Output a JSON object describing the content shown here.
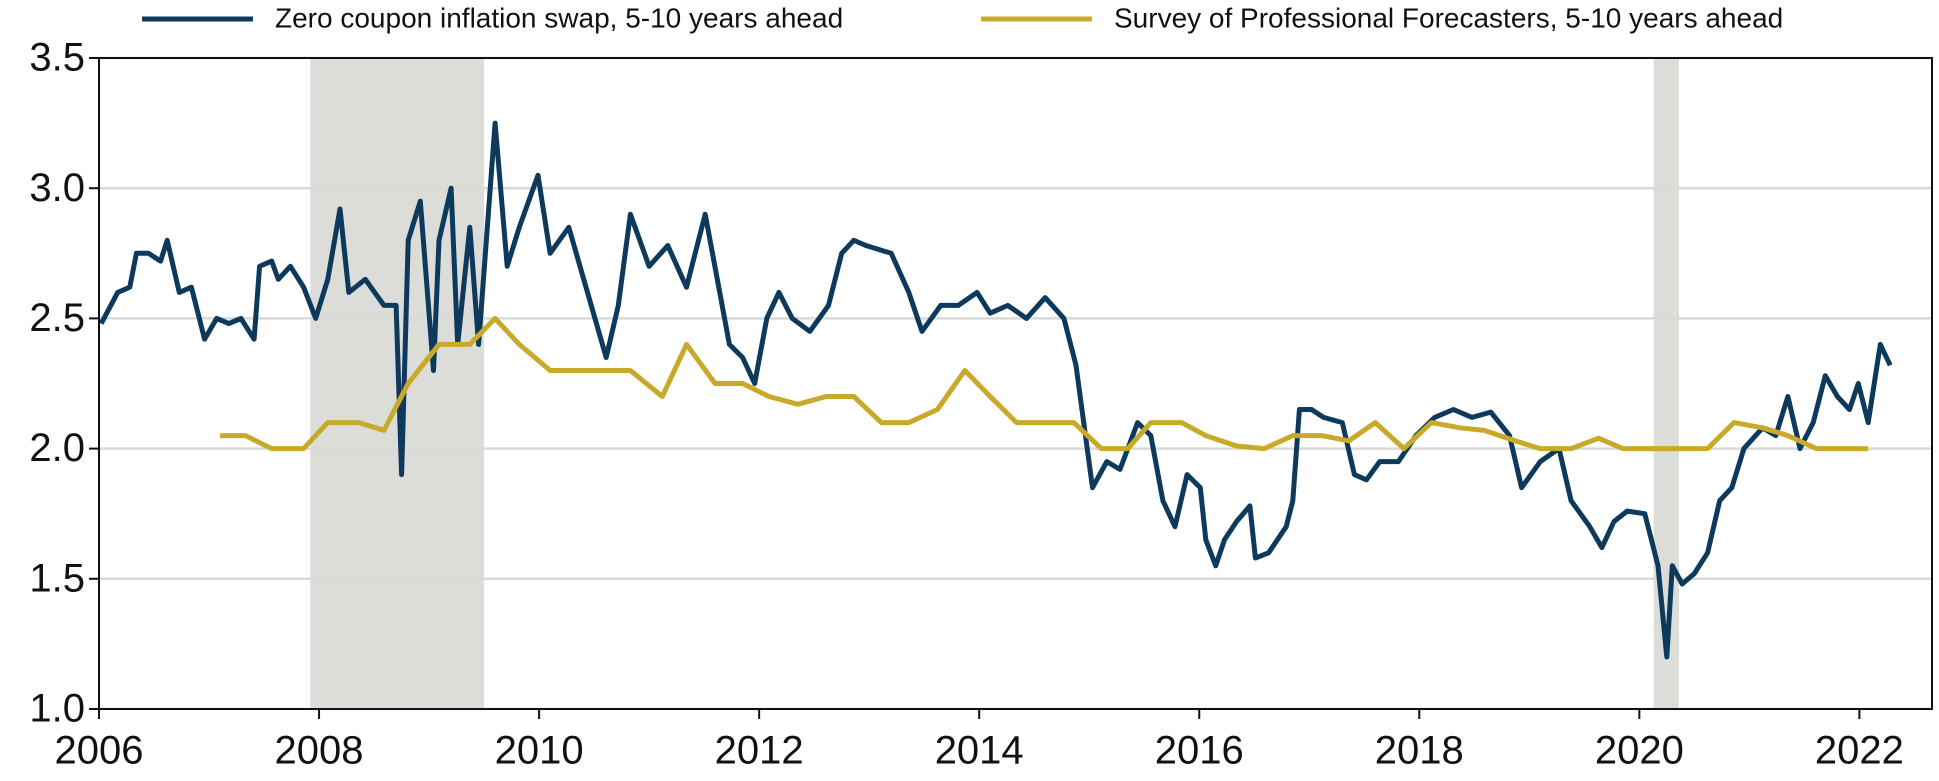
{
  "chart_data": {
    "type": "line",
    "xlim": [
      2006,
      2022.66
    ],
    "xticks": [
      2006,
      2008,
      2010,
      2012,
      2014,
      2016,
      2018,
      2020,
      2022
    ],
    "ylim": [
      1,
      3.5
    ],
    "yticks": [
      {
        "value": 1,
        "label": "1.0"
      },
      1.5,
      {
        "value": 2,
        "label": "2.0"
      },
      2.5,
      {
        "value": 3,
        "label": "3.0"
      },
      3.5
    ],
    "grid": true,
    "legend": "top",
    "shaded_periods": [
      [
        2007.92,
        2009.5
      ],
      [
        2020.13,
        2020.36
      ]
    ],
    "shade_color": "#dcdcd8",
    "series": [
      {
        "name": "Zero coupon inflation swap, 5-10 years ahead",
        "color": "#0d3a5c",
        "x": [
          2006.02,
          2006.17,
          2006.28,
          2006.34,
          2006.45,
          2006.56,
          2006.62,
          2006.73,
          2006.84,
          2006.96,
          2007.07,
          2007.18,
          2007.29,
          2007.41,
          2007.46,
          2007.57,
          2007.63,
          2007.74,
          2007.86,
          2007.97,
          2008.08,
          2008.19,
          2008.27,
          2008.42,
          2008.59,
          2008.7,
          2008.75,
          2008.81,
          2008.92,
          2009.04,
          2009.09,
          2009.2,
          2009.26,
          2009.37,
          2009.45,
          2009.6,
          2009.71,
          2009.82,
          2009.99,
          2010.1,
          2010.27,
          2010.44,
          2010.61,
          2010.72,
          2010.83,
          2011.0,
          2011.17,
          2011.34,
          2011.51,
          2011.62,
          2011.73,
          2011.85,
          2011.96,
          2012.07,
          2012.18,
          2012.3,
          2012.46,
          2012.63,
          2012.75,
          2012.86,
          2012.97,
          2013.2,
          2013.36,
          2013.48,
          2013.65,
          2013.81,
          2013.98,
          2014.1,
          2014.26,
          2014.43,
          2014.6,
          2014.77,
          2014.88,
          2015.03,
          2015.16,
          2015.28,
          2015.44,
          2015.56,
          2015.67,
          2015.78,
          2015.89,
          2016.01,
          2016.06,
          2016.15,
          2016.23,
          2016.34,
          2016.46,
          2016.51,
          2016.63,
          2016.79,
          2016.85,
          2016.91,
          2017.02,
          2017.13,
          2017.3,
          2017.41,
          2017.52,
          2017.64,
          2017.81,
          2017.97,
          2018.14,
          2018.31,
          2018.48,
          2018.65,
          2018.82,
          2018.93,
          2019.1,
          2019.27,
          2019.38,
          2019.55,
          2019.66,
          2019.77,
          2019.89,
          2020.05,
          2020.17,
          2020.25,
          2020.3,
          2020.39,
          2020.5,
          2020.62,
          2020.73,
          2020.84,
          2020.95,
          2021.12,
          2021.24,
          2021.35,
          2021.46,
          2021.58,
          2021.69,
          2021.8,
          2021.91,
          2021.99,
          2022.08,
          2022.19,
          2022.28
        ],
        "values": [
          2.48,
          2.6,
          2.62,
          2.75,
          2.75,
          2.72,
          2.8,
          2.6,
          2.62,
          2.42,
          2.5,
          2.48,
          2.5,
          2.42,
          2.7,
          2.72,
          2.65,
          2.7,
          2.62,
          2.5,
          2.65,
          2.92,
          2.6,
          2.65,
          2.55,
          2.55,
          1.9,
          2.8,
          2.95,
          2.3,
          2.8,
          3.0,
          2.4,
          2.85,
          2.4,
          3.25,
          2.7,
          2.85,
          3.05,
          2.75,
          2.85,
          2.6,
          2.35,
          2.55,
          2.9,
          2.7,
          2.78,
          2.62,
          2.9,
          2.65,
          2.4,
          2.35,
          2.25,
          2.5,
          2.6,
          2.5,
          2.45,
          2.55,
          2.75,
          2.8,
          2.78,
          2.75,
          2.6,
          2.45,
          2.55,
          2.55,
          2.6,
          2.52,
          2.55,
          2.5,
          2.58,
          2.5,
          2.32,
          1.85,
          1.95,
          1.92,
          2.1,
          2.05,
          1.8,
          1.7,
          1.9,
          1.85,
          1.65,
          1.55,
          1.65,
          1.72,
          1.78,
          1.58,
          1.6,
          1.7,
          1.8,
          2.15,
          2.15,
          2.12,
          2.1,
          1.9,
          1.88,
          1.95,
          1.95,
          2.05,
          2.12,
          2.15,
          2.12,
          2.14,
          2.05,
          1.85,
          1.95,
          2.0,
          1.8,
          1.7,
          1.62,
          1.72,
          1.76,
          1.75,
          1.55,
          1.2,
          1.55,
          1.48,
          1.52,
          1.6,
          1.8,
          1.85,
          2.0,
          2.08,
          2.05,
          2.2,
          2.0,
          2.1,
          2.28,
          2.2,
          2.15,
          2.25,
          2.1,
          2.4,
          2.32
        ]
      },
      {
        "name": "Survey of Professional Forecasters, 5-10 years ahead",
        "color": "#c9a92a",
        "x": [
          2007.1,
          2007.33,
          2007.57,
          2007.86,
          2008.08,
          2008.36,
          2008.59,
          2008.81,
          2009.09,
          2009.37,
          2009.6,
          2009.82,
          2010.1,
          2010.83,
          2011.12,
          2011.34,
          2011.6,
          2011.85,
          2012.09,
          2012.35,
          2012.61,
          2012.86,
          2013.11,
          2013.36,
          2013.62,
          2013.87,
          2014.1,
          2014.34,
          2014.86,
          2015.11,
          2015.35,
          2015.56,
          2015.84,
          2016.06,
          2016.34,
          2016.59,
          2016.85,
          2017.11,
          2017.36,
          2017.6,
          2017.86,
          2018.11,
          2018.37,
          2018.59,
          2018.87,
          2019.1,
          2019.38,
          2019.63,
          2019.85,
          2020.62,
          2020.86,
          2021.12,
          2021.35,
          2021.61,
          2022.08
        ],
        "values": [
          2.05,
          2.05,
          2.0,
          2.0,
          2.1,
          2.1,
          2.07,
          2.25,
          2.4,
          2.4,
          2.5,
          2.4,
          2.3,
          2.3,
          2.2,
          2.4,
          2.25,
          2.25,
          2.2,
          2.17,
          2.2,
          2.2,
          2.1,
          2.1,
          2.15,
          2.3,
          2.2,
          2.1,
          2.1,
          2.0,
          2.0,
          2.1,
          2.1,
          2.05,
          2.01,
          2.0,
          2.05,
          2.05,
          2.03,
          2.1,
          2.0,
          2.1,
          2.08,
          2.07,
          2.03,
          2.0,
          2.0,
          2.04,
          2.0,
          2.0,
          2.1,
          2.08,
          2.05,
          2.0,
          2.0
        ]
      }
    ]
  }
}
